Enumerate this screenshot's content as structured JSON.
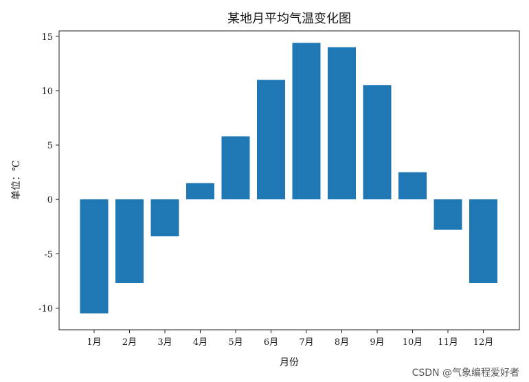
{
  "chart_data": {
    "type": "bar",
    "title": "某地月平均气温变化图",
    "xlabel": "月份",
    "ylabel": "单位：℃",
    "categories": [
      "1月",
      "2月",
      "3月",
      "4月",
      "5月",
      "6月",
      "7月",
      "8月",
      "9月",
      "10月",
      "11月",
      "12月"
    ],
    "values": [
      -10.5,
      -7.7,
      -3.4,
      1.5,
      5.8,
      11.0,
      14.4,
      14.0,
      10.5,
      2.5,
      -2.8,
      -7.7
    ],
    "ylim": [
      -12,
      15.5
    ],
    "yticks": [
      -10,
      -5,
      0,
      5,
      10,
      15
    ],
    "grid": false,
    "bar_color": "#1f77b4"
  },
  "watermark": "CSDN @气象编程爱好者"
}
